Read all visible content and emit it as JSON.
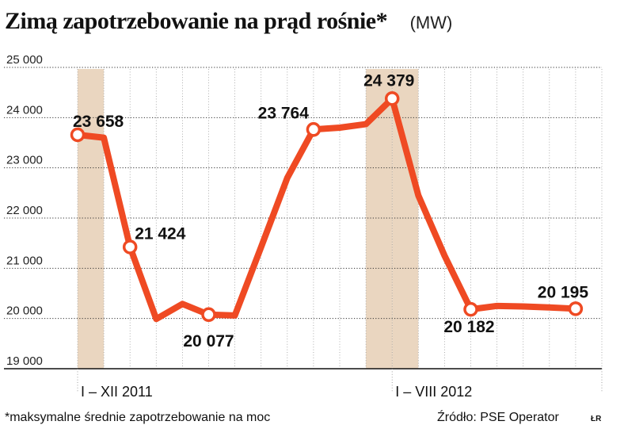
{
  "title": "Zimą zapotrzebowanie na prąd rośnie*",
  "unit": "(MW)",
  "footnote": "*maksymalne średnie zapotrzebowanie na moc",
  "source": "Źródło: PSE Operator",
  "author": "ŁR",
  "colors": {
    "line": "#ef4a23",
    "shade": "#ead6c0",
    "grid": "#333333",
    "background": "#ffffff"
  },
  "chart_data": {
    "type": "line",
    "title": "Zimą zapotrzebowanie na prąd rośnie*",
    "ylabel": "(MW)",
    "ylim": [
      19000,
      25000
    ],
    "yticks": [
      19000,
      20000,
      21000,
      22000,
      23000,
      24000,
      25000
    ],
    "ytick_labels": [
      "19 000",
      "20 000",
      "21 000",
      "22 000",
      "23 000",
      "24 000",
      "25 000"
    ],
    "periods": [
      {
        "label": "I – XII 2011",
        "months": 12
      },
      {
        "label": "I – VIII 2012",
        "months": 8
      }
    ],
    "x": [
      1,
      2,
      3,
      4,
      5,
      6,
      7,
      8,
      9,
      10,
      11,
      12,
      13,
      14,
      15,
      16,
      17,
      18,
      19,
      20
    ],
    "values": [
      23658,
      23600,
      21424,
      19990,
      20290,
      20077,
      20060,
      21420,
      22800,
      23764,
      23800,
      23870,
      24379,
      22450,
      21250,
      20182,
      20250,
      20240,
      20220,
      20195
    ],
    "shaded_months": [
      1,
      12,
      13
    ],
    "labeled_points": [
      {
        "index": 0,
        "text": "23 658"
      },
      {
        "index": 2,
        "text": "21 424"
      },
      {
        "index": 5,
        "text": "20 077"
      },
      {
        "index": 9,
        "text": "23 764"
      },
      {
        "index": 12,
        "text": "24 379"
      },
      {
        "index": 15,
        "text": "20 182"
      },
      {
        "index": 19,
        "text": "20 195"
      }
    ],
    "grid": true,
    "legend": "none"
  }
}
